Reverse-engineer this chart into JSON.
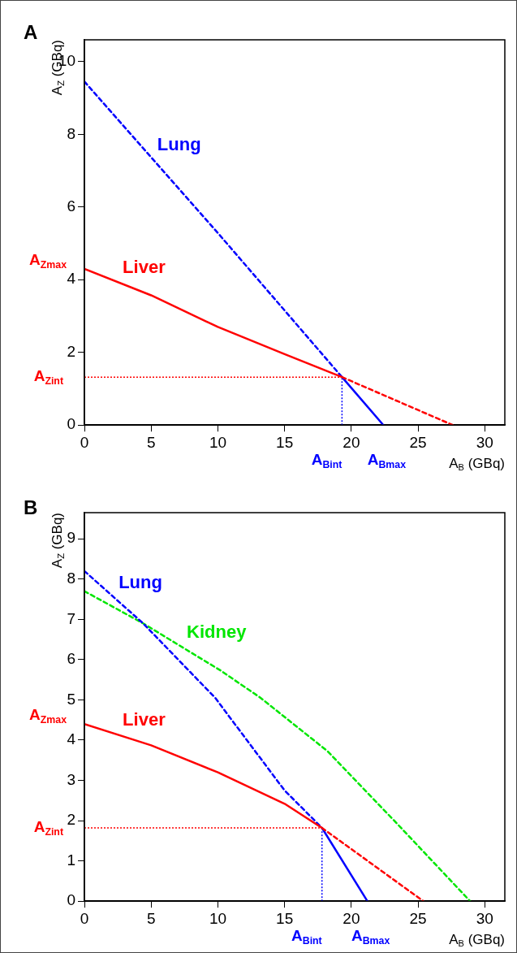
{
  "chart_data": [
    {
      "type": "line",
      "title": "A",
      "xlabel": "A$_{B}$ (GBq)",
      "ylabel": "A$_{Z}$ (GBq)",
      "xlim": [
        0,
        31.5
      ],
      "ylim": [
        0,
        10.6
      ],
      "xticks": [
        0,
        5,
        10,
        15,
        20,
        25,
        30
      ],
      "yticks": [
        0,
        2,
        4,
        6,
        8,
        10
      ],
      "grid": false,
      "legend": false,
      "marker": "none",
      "series": [
        {
          "name": "Liver",
          "color": "#ff0000",
          "line_style": "solid",
          "x": [
            0,
            5,
            10,
            15,
            19.3
          ],
          "values": [
            4.3,
            3.57,
            2.7,
            1.95,
            1.32
          ]
        },
        {
          "color": "#ff0000",
          "line_style": "dashed",
          "x": [
            19.3,
            27.6
          ],
          "values": [
            1.32,
            0
          ]
        },
        {
          "name": "Lung",
          "color": "#0000ff",
          "line_style": "dashed",
          "x": [
            0,
            10.2,
            19.3
          ],
          "values": [
            9.45,
            5.2,
            1.32
          ]
        },
        {
          "color": "#0000ff",
          "line_style": "solid",
          "x": [
            19.3,
            22.4
          ],
          "values": [
            1.32,
            0
          ]
        }
      ],
      "ref_lines": [
        {
          "axis": "y",
          "value": 1.32,
          "label": "A$_{Zint}$",
          "color": "#ff0000",
          "line_style": "dotted"
        },
        {
          "axis": "x",
          "value": 19.3,
          "label": "A$_{Bint}$",
          "color": "#0000ff",
          "line_style": "dotted"
        }
      ],
      "annotations": [
        {
          "text": "A$_{Zmax}$",
          "x": 0,
          "y": 4.3
        },
        {
          "text": "A$_{Bmax}$",
          "x": 22.4,
          "y": 0
        }
      ]
    },
    {
      "type": "line",
      "title": "B",
      "xlabel": "A$_{B}$ (GBq)",
      "ylabel": "A$_{Z}$ (GBq)",
      "xlim": [
        0,
        31.5
      ],
      "ylim": [
        0,
        9.65
      ],
      "xticks": [
        0,
        5,
        10,
        15,
        20,
        25,
        30
      ],
      "yticks": [
        0,
        1,
        2,
        3,
        4,
        5,
        6,
        7,
        8,
        9
      ],
      "grid": false,
      "legend": false,
      "marker": "none",
      "series": [
        {
          "name": "Liver",
          "color": "#ff0000",
          "line_style": "solid",
          "x": [
            0,
            5,
            10,
            15,
            17.8
          ],
          "values": [
            4.4,
            3.87,
            3.2,
            2.42,
            1.82
          ]
        },
        {
          "color": "#ff0000",
          "line_style": "dashed",
          "x": [
            17.8,
            25.4
          ],
          "values": [
            1.82,
            0
          ]
        },
        {
          "name": "Lung",
          "color": "#0000ff",
          "line_style": "dashed",
          "x": [
            0,
            4.4,
            9.8,
            15,
            17.8
          ],
          "values": [
            8.2,
            6.9,
            5.05,
            2.75,
            1.82
          ]
        },
        {
          "color": "#0000ff",
          "line_style": "solid",
          "x": [
            17.8,
            21.2
          ],
          "values": [
            1.82,
            0
          ]
        },
        {
          "name": "Kidney",
          "color": "#00e600",
          "line_style": "dashed",
          "x": [
            0,
            4.4,
            10.2,
            13.2,
            18.2,
            23.5,
            28.9
          ],
          "values": [
            7.7,
            6.9,
            5.73,
            5.05,
            3.73,
            1.9,
            0
          ]
        }
      ],
      "ref_lines": [
        {
          "axis": "y",
          "value": 1.82,
          "label": "A$_{Zint}$",
          "color": "#ff0000",
          "line_style": "dotted"
        },
        {
          "axis": "x",
          "value": 17.8,
          "label": "A$_{Bint}$",
          "color": "#0000ff",
          "line_style": "dotted"
        }
      ],
      "annotations": [
        {
          "text": "A$_{Zmax}$",
          "x": 0,
          "y": 4.4
        },
        {
          "text": "A$_{Bmax}$",
          "x": 21.2,
          "y": 0
        }
      ]
    }
  ]
}
